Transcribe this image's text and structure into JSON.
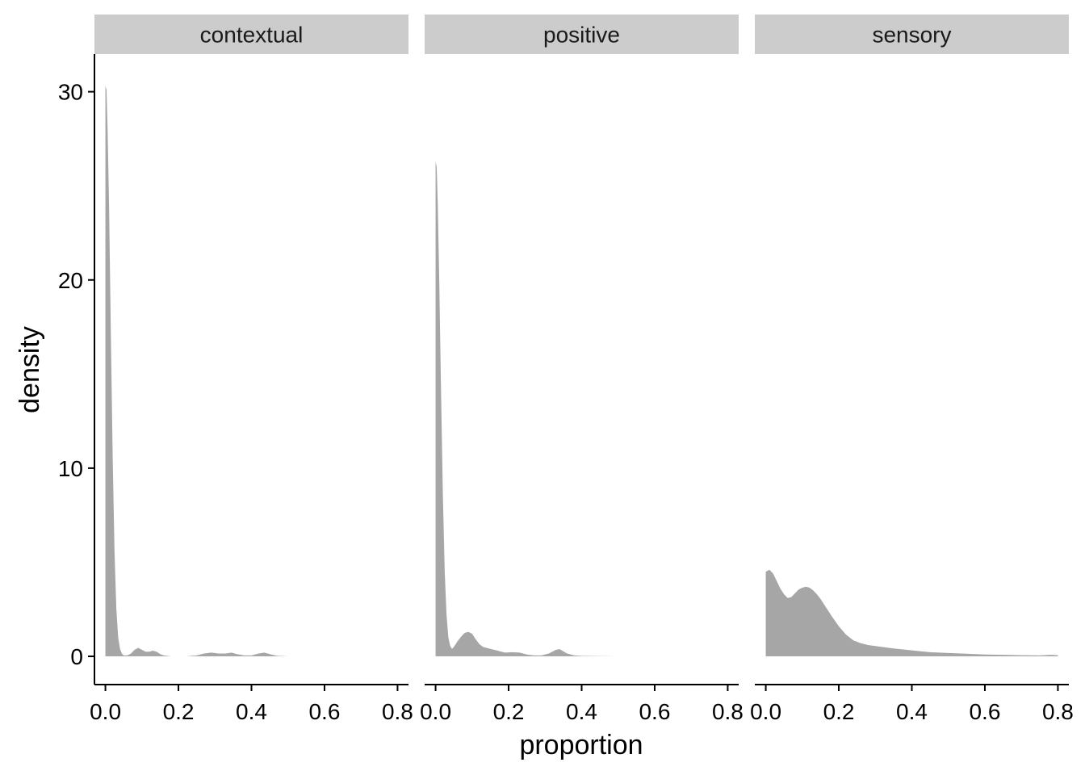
{
  "chart_data": {
    "type": "area",
    "xlabel": "proportion",
    "ylabel": "density",
    "xlim": [
      -0.03,
      0.83
    ],
    "ylim": [
      -1.5,
      32
    ],
    "x_ticks": [
      "0.0",
      "0.2",
      "0.4",
      "0.6",
      "0.8"
    ],
    "x_tick_values": [
      0,
      0.2,
      0.4,
      0.6,
      0.8
    ],
    "y_ticks": [
      "0",
      "10",
      "20",
      "30"
    ],
    "y_tick_values": [
      0,
      10,
      20,
      30
    ],
    "fill_color": "#a6a6a6",
    "strip_color": "#cccccc",
    "panels": [
      {
        "label": "contextual",
        "x": [
          0,
          0.003,
          0.006,
          0.01,
          0.015,
          0.02,
          0.025,
          0.03,
          0.035,
          0.04,
          0.045,
          0.05,
          0.06,
          0.07,
          0.08,
          0.09,
          0.1,
          0.11,
          0.12,
          0.13,
          0.14,
          0.15,
          0.16,
          0.18,
          0.2,
          0.22,
          0.25,
          0.27,
          0.29,
          0.31,
          0.33,
          0.345,
          0.36,
          0.38,
          0.4,
          0.42,
          0.435,
          0.45,
          0.47,
          0.5,
          0.6,
          0.7,
          0.8
        ],
        "density": [
          30.3,
          30.1,
          28.0,
          24.0,
          17.0,
          10.5,
          5.5,
          2.5,
          1.0,
          0.4,
          0.15,
          0.05,
          0.05,
          0.15,
          0.35,
          0.45,
          0.35,
          0.25,
          0.25,
          0.3,
          0.25,
          0.12,
          0.05,
          0.0,
          0.0,
          0.0,
          0.05,
          0.15,
          0.2,
          0.15,
          0.15,
          0.2,
          0.12,
          0.05,
          0.05,
          0.15,
          0.2,
          0.12,
          0.03,
          0.0,
          0.0,
          0.0,
          0.0
        ]
      },
      {
        "label": "positive",
        "x": [
          0,
          0.003,
          0.006,
          0.01,
          0.015,
          0.02,
          0.025,
          0.03,
          0.035,
          0.04,
          0.045,
          0.05,
          0.06,
          0.07,
          0.08,
          0.09,
          0.1,
          0.11,
          0.12,
          0.13,
          0.15,
          0.17,
          0.19,
          0.21,
          0.23,
          0.25,
          0.27,
          0.29,
          0.31,
          0.33,
          0.34,
          0.36,
          0.38,
          0.4,
          0.5,
          0.6,
          0.7,
          0.8
        ],
        "density": [
          26.3,
          26.0,
          24.0,
          20.0,
          14.0,
          8.5,
          4.5,
          2.2,
          1.0,
          0.55,
          0.4,
          0.5,
          0.8,
          1.05,
          1.25,
          1.3,
          1.2,
          0.9,
          0.65,
          0.5,
          0.4,
          0.3,
          0.2,
          0.22,
          0.2,
          0.1,
          0.05,
          0.05,
          0.15,
          0.35,
          0.38,
          0.15,
          0.05,
          0.02,
          0.0,
          0.0,
          0.0,
          0.0
        ]
      },
      {
        "label": "sensory",
        "x": [
          0,
          0.01,
          0.02,
          0.03,
          0.04,
          0.05,
          0.06,
          0.07,
          0.08,
          0.09,
          0.1,
          0.11,
          0.12,
          0.13,
          0.14,
          0.15,
          0.16,
          0.17,
          0.18,
          0.2,
          0.22,
          0.24,
          0.26,
          0.28,
          0.3,
          0.35,
          0.4,
          0.45,
          0.5,
          0.55,
          0.6,
          0.65,
          0.7,
          0.75,
          0.78,
          0.8
        ],
        "density": [
          4.5,
          4.6,
          4.4,
          4.0,
          3.6,
          3.3,
          3.1,
          3.15,
          3.35,
          3.55,
          3.65,
          3.7,
          3.65,
          3.5,
          3.3,
          3.05,
          2.75,
          2.45,
          2.15,
          1.6,
          1.15,
          0.85,
          0.7,
          0.6,
          0.55,
          0.42,
          0.32,
          0.22,
          0.18,
          0.14,
          0.1,
          0.08,
          0.06,
          0.05,
          0.08,
          0.06
        ]
      }
    ]
  }
}
